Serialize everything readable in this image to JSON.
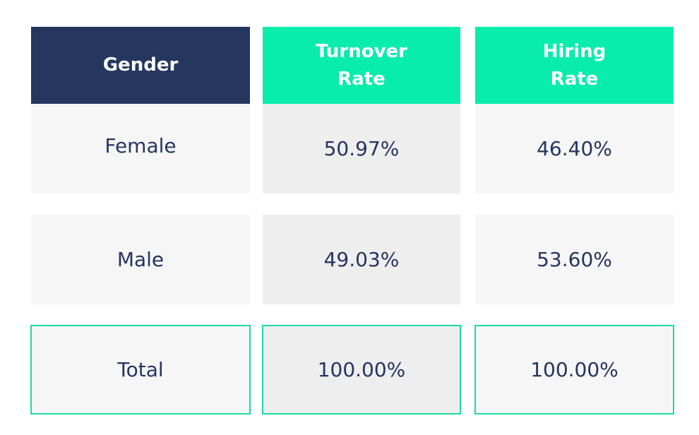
{
  "chart_data": {
    "type": "table",
    "columns": [
      "Gender",
      "Turnover\nRate",
      "Hiring\nRate"
    ],
    "rows": [
      [
        "Female",
        "50.97%",
        "46.40%"
      ],
      [
        "Male",
        "49.03%",
        "53.60%"
      ],
      [
        "Total",
        "100.00%",
        "100.00%"
      ]
    ]
  },
  "colors": {
    "header_navy": "#25365f",
    "header_green": "#08ecac",
    "text": "#243560",
    "total_border": "#1ad9a6"
  }
}
